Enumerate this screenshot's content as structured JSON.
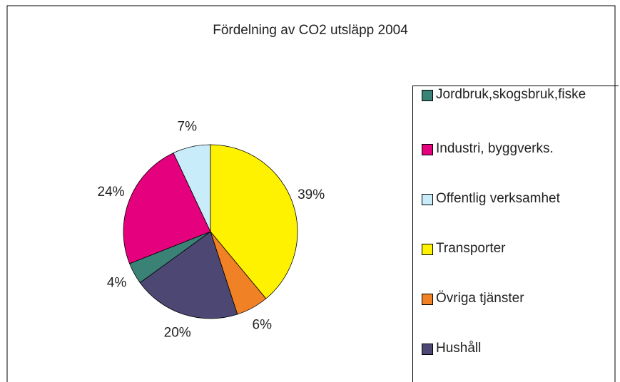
{
  "chart_data": {
    "type": "pie",
    "title": "Fördelning av CO2 utsläpp 2004",
    "categories": [
      "Jordbruk,skogsbruk,fiske",
      "Industri, byggverks.",
      "Offentlig verksamhet",
      "Transporter",
      "Övriga tjänster",
      "Hushåll"
    ],
    "values": [
      4,
      24,
      7,
      39,
      6,
      20
    ],
    "value_labels": [
      "4%",
      "24%",
      "7%",
      "39%",
      "6%",
      "20%"
    ],
    "colors": [
      "#3b8276",
      "#e5007d",
      "#c9ecfb",
      "#fff200",
      "#f08124",
      "#4d4774"
    ],
    "legend": "right"
  }
}
